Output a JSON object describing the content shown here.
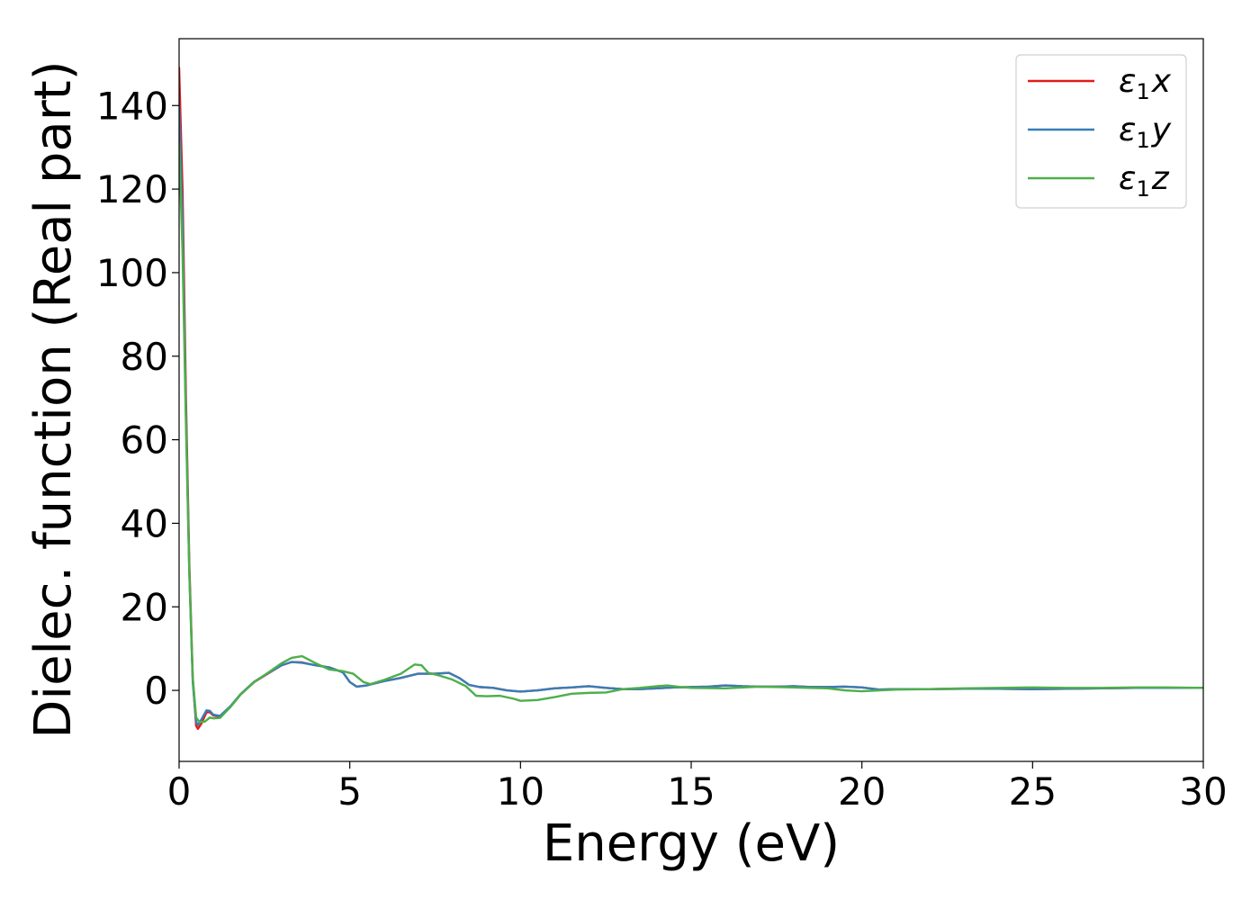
{
  "chart_data": {
    "type": "line",
    "xlabel": "Energy (eV)",
    "ylabel": "Dielec. function (Real part)",
    "xlim": [
      0,
      30
    ],
    "ylim": [
      -17,
      156
    ],
    "x_ticks": [
      0,
      5,
      10,
      15,
      20,
      25,
      30
    ],
    "y_ticks": [
      0,
      20,
      40,
      60,
      80,
      100,
      120,
      140
    ],
    "grid": false,
    "legend_position": "top-right",
    "series": [
      {
        "name": "ε₁x",
        "label_base": "ε",
        "label_sub": "1",
        "label_var": "x",
        "color": "#e41a1c",
        "points": [
          [
            0,
            149
          ],
          [
            0.1,
            120
          ],
          [
            0.2,
            70
          ],
          [
            0.3,
            30
          ],
          [
            0.4,
            3
          ],
          [
            0.5,
            -8.5
          ],
          [
            0.55,
            -9.2
          ],
          [
            0.65,
            -8
          ],
          [
            0.8,
            -5.3
          ],
          [
            0.9,
            -5.2
          ],
          [
            1.0,
            -6
          ],
          [
            1.2,
            -6.3
          ],
          [
            1.5,
            -4
          ],
          [
            1.8,
            -1
          ],
          [
            2.2,
            2
          ],
          [
            2.6,
            4
          ],
          [
            3.0,
            6
          ],
          [
            3.3,
            6.8
          ],
          [
            3.6,
            6.7
          ],
          [
            4.0,
            6
          ],
          [
            4.4,
            5.5
          ],
          [
            4.8,
            4.3
          ],
          [
            5.0,
            2
          ],
          [
            5.2,
            0.9
          ],
          [
            5.5,
            1.2
          ],
          [
            6.0,
            2.2
          ],
          [
            6.5,
            3
          ],
          [
            7.0,
            4
          ],
          [
            7.5,
            4
          ],
          [
            7.9,
            4.2
          ],
          [
            8.2,
            3
          ],
          [
            8.5,
            1.3
          ],
          [
            8.8,
            0.8
          ],
          [
            9.2,
            0.6
          ],
          [
            9.6,
            0
          ],
          [
            10.0,
            -0.3
          ],
          [
            10.5,
            0
          ],
          [
            11.0,
            0.5
          ],
          [
            11.5,
            0.7
          ],
          [
            12.0,
            1
          ],
          [
            12.5,
            0.6
          ],
          [
            13.0,
            0.3
          ],
          [
            13.5,
            0.3
          ],
          [
            14.0,
            0.5
          ],
          [
            14.5,
            0.7
          ],
          [
            15.0,
            0.8
          ],
          [
            15.5,
            0.9
          ],
          [
            16.0,
            1.2
          ],
          [
            16.5,
            1.0
          ],
          [
            17.0,
            0.9
          ],
          [
            17.5,
            0.9
          ],
          [
            18.0,
            1.0
          ],
          [
            18.5,
            0.8
          ],
          [
            19.0,
            0.8
          ],
          [
            19.5,
            0.9
          ],
          [
            20.0,
            0.7
          ],
          [
            20.5,
            0.2
          ],
          [
            21.0,
            0.3
          ],
          [
            22.0,
            0.3
          ],
          [
            23.0,
            0.4
          ],
          [
            24.0,
            0.4
          ],
          [
            25.0,
            0.3
          ],
          [
            26.0,
            0.4
          ],
          [
            27.0,
            0.5
          ],
          [
            28.0,
            0.6
          ],
          [
            29.0,
            0.6
          ],
          [
            30.0,
            0.6
          ]
        ]
      },
      {
        "name": "ε₁y",
        "label_base": "ε",
        "label_sub": "1",
        "label_var": "y",
        "color": "#377eb8",
        "points": [
          [
            0,
            140
          ],
          [
            0.1,
            112
          ],
          [
            0.2,
            66
          ],
          [
            0.3,
            28
          ],
          [
            0.4,
            2
          ],
          [
            0.5,
            -7.5
          ],
          [
            0.55,
            -8.3
          ],
          [
            0.65,
            -7
          ],
          [
            0.8,
            -4.8
          ],
          [
            0.9,
            -4.9
          ],
          [
            1.0,
            -5.8
          ],
          [
            1.2,
            -6.1
          ],
          [
            1.5,
            -3.8
          ],
          [
            1.8,
            -0.9
          ],
          [
            2.2,
            2.1
          ],
          [
            2.6,
            4.1
          ],
          [
            3.0,
            6
          ],
          [
            3.3,
            6.8
          ],
          [
            3.6,
            6.6
          ],
          [
            4.0,
            6
          ],
          [
            4.4,
            5.5
          ],
          [
            4.8,
            4.3
          ],
          [
            5.0,
            2
          ],
          [
            5.2,
            0.9
          ],
          [
            5.5,
            1.2
          ],
          [
            6.0,
            2.2
          ],
          [
            6.5,
            3
          ],
          [
            7.0,
            4
          ],
          [
            7.5,
            4
          ],
          [
            7.9,
            4.2
          ],
          [
            8.2,
            3
          ],
          [
            8.5,
            1.3
          ],
          [
            8.8,
            0.8
          ],
          [
            9.2,
            0.6
          ],
          [
            9.6,
            0
          ],
          [
            10.0,
            -0.3
          ],
          [
            10.5,
            0
          ],
          [
            11.0,
            0.5
          ],
          [
            11.5,
            0.7
          ],
          [
            12.0,
            1
          ],
          [
            12.5,
            0.6
          ],
          [
            13.0,
            0.3
          ],
          [
            13.5,
            0.3
          ],
          [
            14.0,
            0.5
          ],
          [
            14.5,
            0.7
          ],
          [
            15.0,
            0.8
          ],
          [
            15.5,
            0.9
          ],
          [
            16.0,
            1.2
          ],
          [
            16.5,
            1.0
          ],
          [
            17.0,
            0.9
          ],
          [
            17.5,
            0.9
          ],
          [
            18.0,
            1.0
          ],
          [
            18.5,
            0.8
          ],
          [
            19.0,
            0.8
          ],
          [
            19.5,
            0.9
          ],
          [
            20.0,
            0.7
          ],
          [
            20.5,
            0.2
          ],
          [
            21.0,
            0.3
          ],
          [
            22.0,
            0.3
          ],
          [
            23.0,
            0.4
          ],
          [
            24.0,
            0.4
          ],
          [
            25.0,
            0.3
          ],
          [
            26.0,
            0.4
          ],
          [
            27.0,
            0.5
          ],
          [
            28.0,
            0.6
          ],
          [
            29.0,
            0.6
          ],
          [
            30.0,
            0.6
          ]
        ]
      },
      {
        "name": "ε₁z",
        "label_base": "ε",
        "label_sub": "1",
        "label_var": "z",
        "color": "#4daf4a",
        "points": [
          [
            0,
            131
          ],
          [
            0.1,
            105
          ],
          [
            0.2,
            64
          ],
          [
            0.3,
            28
          ],
          [
            0.4,
            3
          ],
          [
            0.5,
            -6.5
          ],
          [
            0.6,
            -7.6
          ],
          [
            0.75,
            -7.5
          ],
          [
            0.9,
            -6.5
          ],
          [
            1.0,
            -6.7
          ],
          [
            1.2,
            -6.6
          ],
          [
            1.5,
            -4
          ],
          [
            1.8,
            -1
          ],
          [
            2.2,
            2
          ],
          [
            2.6,
            4.2
          ],
          [
            3.0,
            6.5
          ],
          [
            3.3,
            7.8
          ],
          [
            3.6,
            8.2
          ],
          [
            4.0,
            6.5
          ],
          [
            4.4,
            5
          ],
          [
            4.8,
            4.6
          ],
          [
            5.1,
            4
          ],
          [
            5.4,
            2
          ],
          [
            5.6,
            1.5
          ],
          [
            6.0,
            2.5
          ],
          [
            6.5,
            4
          ],
          [
            6.9,
            6.2
          ],
          [
            7.1,
            6
          ],
          [
            7.3,
            4.2
          ],
          [
            7.6,
            3.6
          ],
          [
            8.0,
            2.6
          ],
          [
            8.4,
            1
          ],
          [
            8.7,
            -1.3
          ],
          [
            9.0,
            -1.4
          ],
          [
            9.4,
            -1.3
          ],
          [
            9.8,
            -2
          ],
          [
            10.0,
            -2.5
          ],
          [
            10.5,
            -2.3
          ],
          [
            11.0,
            -1.6
          ],
          [
            11.5,
            -0.8
          ],
          [
            12.0,
            -0.6
          ],
          [
            12.5,
            -0.5
          ],
          [
            13.0,
            0.3
          ],
          [
            13.5,
            0.6
          ],
          [
            14.0,
            1
          ],
          [
            14.3,
            1.2
          ],
          [
            14.7,
            0.8
          ],
          [
            15.0,
            0.6
          ],
          [
            16.0,
            0.5
          ],
          [
            17.0,
            0.9
          ],
          [
            18.0,
            0.7
          ],
          [
            19.0,
            0.5
          ],
          [
            19.5,
            0
          ],
          [
            20.0,
            -0.2
          ],
          [
            21.0,
            0.2
          ],
          [
            22.0,
            0.3
          ],
          [
            23.0,
            0.5
          ],
          [
            24.0,
            0.6
          ],
          [
            25.0,
            0.7
          ],
          [
            26.0,
            0.6
          ],
          [
            27.0,
            0.6
          ],
          [
            28.0,
            0.7
          ],
          [
            29.0,
            0.7
          ],
          [
            30.0,
            0.6
          ]
        ]
      }
    ]
  }
}
